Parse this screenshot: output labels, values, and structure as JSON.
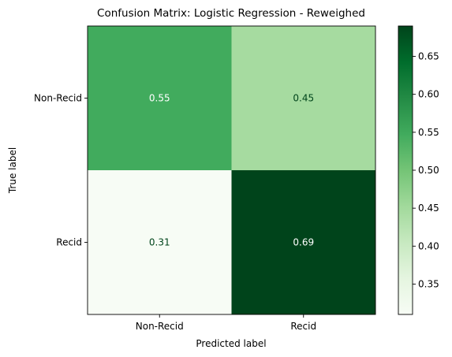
{
  "chart_data": {
    "type": "heatmap",
    "title": "Confusion Matrix: Logistic Regression - Reweighed",
    "xlabel": "Predicted label",
    "ylabel": "True label",
    "x_categories": [
      "Non-Recid",
      "Recid"
    ],
    "y_categories": [
      "Non-Recid",
      "Recid"
    ],
    "values": [
      [
        0.55,
        0.45
      ],
      [
        0.31,
        0.69
      ]
    ],
    "value_labels": [
      [
        "0.55",
        "0.45"
      ],
      [
        "0.31",
        "0.69"
      ]
    ],
    "colormap": "Greens",
    "colorbar": {
      "range": [
        0.31,
        0.69
      ],
      "ticks": [
        0.35,
        0.4,
        0.45,
        0.5,
        0.55,
        0.6,
        0.65
      ],
      "tick_labels": [
        "0.35",
        "0.40",
        "0.45",
        "0.50",
        "0.55",
        "0.60",
        "0.65"
      ]
    },
    "cell_colors": [
      [
        "#41ab5d",
        "#a6dba0"
      ],
      [
        "#f7fcf5",
        "#00441b"
      ]
    ],
    "text_colors": [
      [
        "#ffffff",
        "#00441b"
      ],
      [
        "#00441b",
        "#ffffff"
      ]
    ],
    "grid": false
  }
}
